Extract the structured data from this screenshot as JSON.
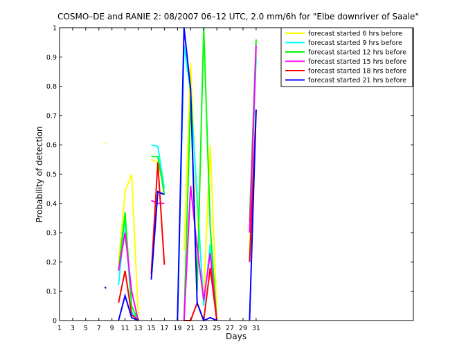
{
  "chart_data": {
    "type": "line",
    "title": "COSMO–DE and RANIE 2: 08/2007 06–12 UTC, 2.0 mm/6h for \"Elbe downriver of Saale\"",
    "xlabel": "Days",
    "ylabel": "Probability of detection",
    "xlim": [
      1,
      55
    ],
    "ylim": [
      0,
      1
    ],
    "xticks": [
      1,
      3,
      5,
      7,
      9,
      11,
      13,
      15,
      17,
      19,
      21,
      23,
      25,
      27,
      29,
      31
    ],
    "yticks": [
      0,
      0.1,
      0.2,
      0.3,
      0.4,
      0.5,
      0.6,
      0.7,
      0.8,
      0.9,
      1
    ],
    "ytick_labels": [
      "0",
      "0.1",
      "0.2",
      "0.3",
      "0.4",
      "0.5",
      "0.6",
      "0.7",
      "0.8",
      "0.9",
      "1"
    ],
    "grid": false,
    "legend_position": "top-right",
    "series": [
      {
        "name": "forecast started 6 hrs before",
        "color": "#ffff00",
        "points": [
          [
            7.9,
            0.605
          ],
          [
            8.1,
            0.603
          ],
          null,
          [
            10,
            0.19
          ],
          [
            11,
            0.44
          ],
          [
            12,
            0.5
          ],
          [
            13,
            0.02
          ],
          null,
          [
            15,
            0.55
          ],
          [
            16,
            0.54
          ],
          [
            17,
            0.45
          ],
          null,
          [
            20,
            0.24
          ],
          [
            21,
            0.88
          ],
          [
            22,
            0.36
          ],
          [
            23,
            0.08
          ],
          [
            24,
            0.6
          ],
          [
            25,
            0.03
          ],
          null,
          [
            30,
            0.23
          ],
          [
            31,
            0.91
          ]
        ]
      },
      {
        "name": "forecast started 9 hrs before",
        "color": "#00ffff",
        "points": [
          [
            10,
            0.12
          ],
          [
            11,
            0.35
          ],
          [
            12,
            0.03
          ],
          [
            13,
            0.0
          ],
          null,
          [
            15,
            0.6
          ],
          [
            16,
            0.595
          ],
          [
            17,
            0.45
          ],
          null,
          [
            19,
            0.0
          ],
          [
            20,
            0.94
          ],
          [
            21,
            0.78
          ],
          [
            22,
            0.42
          ],
          [
            23,
            0.05
          ],
          [
            24,
            0.26
          ],
          [
            25,
            0.0
          ],
          null,
          [
            30,
            0.3
          ],
          [
            31,
            0.9
          ]
        ]
      },
      {
        "name": "forecast started 12 hrs before",
        "color": "#00ff00",
        "points": [
          [
            10,
            0.17
          ],
          [
            11,
            0.37
          ],
          [
            12,
            0.05
          ],
          [
            13,
            0.0
          ],
          null,
          [
            15,
            0.56
          ],
          [
            16,
            0.56
          ],
          [
            17,
            0.43
          ],
          null,
          [
            20,
            0.0
          ],
          [
            21,
            0.76
          ],
          [
            22,
            0.1
          ],
          [
            23,
            1.0
          ],
          [
            24,
            0.32
          ],
          [
            25,
            0.0
          ],
          null,
          [
            30,
            0.34
          ],
          [
            31,
            0.96
          ]
        ]
      },
      {
        "name": "forecast started 15 hrs before",
        "color": "#ff00ff",
        "points": [
          [
            10,
            0.17
          ],
          [
            11,
            0.3
          ],
          [
            12,
            0.1
          ],
          [
            13,
            0.0
          ],
          null,
          [
            15,
            0.41
          ],
          [
            16,
            0.4
          ],
          [
            17,
            0.4
          ],
          null,
          [
            20,
            0.0
          ],
          [
            21,
            0.46
          ],
          [
            22,
            0.25
          ],
          [
            23,
            0.07
          ],
          [
            24,
            0.23
          ],
          [
            25,
            0.0
          ],
          null,
          [
            30,
            0.3
          ],
          [
            31,
            0.94
          ]
        ]
      },
      {
        "name": "forecast started 18 hrs before",
        "color": "#ff0000",
        "points": [
          [
            10,
            0.06
          ],
          [
            11,
            0.17
          ],
          [
            12,
            0.02
          ],
          [
            13,
            0.0
          ],
          null,
          [
            15,
            0.16
          ],
          [
            16,
            0.54
          ],
          [
            17,
            0.19
          ],
          null,
          [
            20,
            0.0
          ],
          [
            21,
            0.0
          ],
          [
            22,
            0.06
          ],
          [
            23,
            0.0
          ],
          [
            24,
            0.18
          ],
          [
            25,
            0.0
          ],
          null,
          [
            30,
            0.2
          ],
          [
            31,
            0.72
          ]
        ]
      },
      {
        "name": "forecast started 21 hrs before",
        "color": "#0000ff",
        "points": [
          [
            7.9,
            0.115
          ],
          [
            8.1,
            0.11
          ],
          null,
          [
            10,
            0.0
          ],
          [
            11,
            0.085
          ],
          [
            12,
            0.01
          ],
          [
            13,
            0.0
          ],
          null,
          [
            15,
            0.14
          ],
          [
            16,
            0.44
          ],
          [
            17,
            0.43
          ],
          null,
          [
            19,
            0.0
          ],
          [
            20,
            1.0
          ],
          [
            21,
            0.79
          ],
          [
            22,
            0.06
          ],
          [
            23,
            0.0
          ],
          [
            24,
            0.01
          ],
          [
            25,
            0.0
          ],
          null,
          [
            30,
            0.0
          ],
          [
            31,
            0.72
          ]
        ]
      }
    ]
  }
}
